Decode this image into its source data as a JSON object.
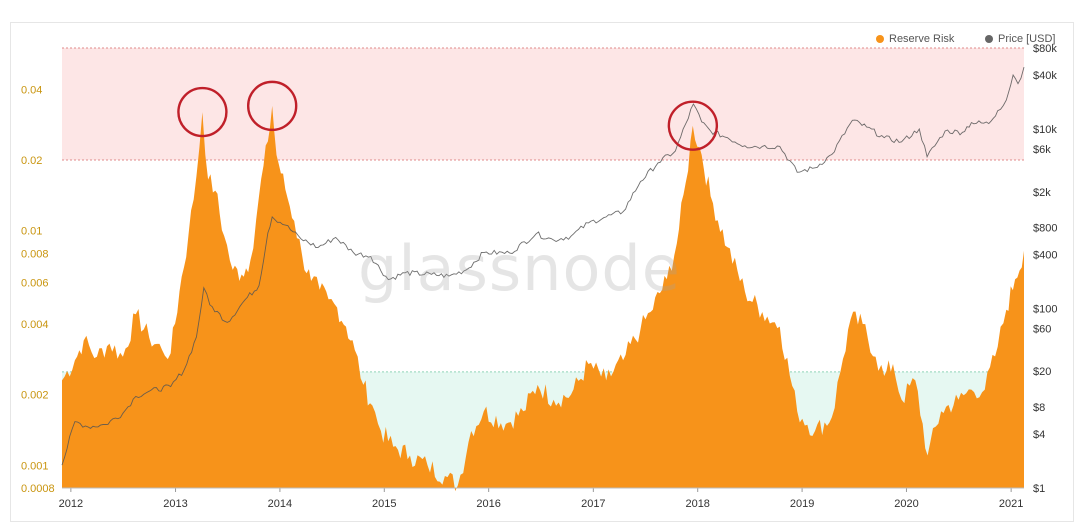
{
  "watermark": "glassnode",
  "colors": {
    "reserve_risk": "#f7931a",
    "price": "#555555",
    "upper_zone": "#fde6e6",
    "lower_zone": "#e6f8f2",
    "circle": "#c0202a"
  },
  "chart_data": {
    "type": "area",
    "legend": [
      {
        "label": "Reserve Risk",
        "color": "#f7931a"
      },
      {
        "label": "Price [USD]",
        "color": "#666666"
      }
    ],
    "x_ticks": [
      "2012",
      "2013",
      "2014",
      "2015",
      "2016",
      "2017",
      "2018",
      "2019",
      "2020",
      "2021"
    ],
    "left_axis": {
      "scale": "log",
      "range": [
        0.0008,
        0.06
      ],
      "ticks": [
        "0.04",
        "0.02",
        "0.01",
        "0.008",
        "0.006",
        "0.004",
        "0.002",
        "0.001",
        "0.0008"
      ]
    },
    "right_axis": {
      "scale": "log",
      "range": [
        1,
        80000
      ],
      "ticks": [
        "$80k",
        "$40k",
        "$10k",
        "$6k",
        "$2k",
        "$800",
        "$400",
        "$100",
        "$60",
        "$20",
        "$8",
        "$4",
        "$1"
      ]
    },
    "bands": {
      "upper": [
        0.02,
        0.06
      ],
      "lower": [
        0.0008,
        0.0025
      ]
    },
    "highlighted_peaks": [
      "2013-04",
      "2013-12",
      "2017-12"
    ],
    "series": [
      {
        "name": "Reserve Risk",
        "axis": "left",
        "points": [
          [
            "2011-12-01",
            0.0023
          ],
          [
            "2012-01-15",
            0.0028
          ],
          [
            "2012-02-15",
            0.0034
          ],
          [
            "2012-04-01",
            0.0029
          ],
          [
            "2012-05-15",
            0.0033
          ],
          [
            "2012-07-01",
            0.0029
          ],
          [
            "2012-08-15",
            0.0044
          ],
          [
            "2012-10-01",
            0.0035
          ],
          [
            "2012-11-15",
            0.0031
          ],
          [
            "2012-12-15",
            0.003
          ],
          [
            "2013-01-15",
            0.0055
          ],
          [
            "2013-02-15",
            0.0095
          ],
          [
            "2013-03-15",
            0.017
          ],
          [
            "2013-04-05",
            0.032
          ],
          [
            "2013-04-25",
            0.0165
          ],
          [
            "2013-05-20",
            0.0148
          ],
          [
            "2013-06-20",
            0.0095
          ],
          [
            "2013-07-20",
            0.0068
          ],
          [
            "2013-08-20",
            0.0065
          ],
          [
            "2013-09-20",
            0.0075
          ],
          [
            "2013-10-20",
            0.014
          ],
          [
            "2013-11-20",
            0.024
          ],
          [
            "2013-12-05",
            0.034
          ],
          [
            "2013-12-20",
            0.021
          ],
          [
            "2014-01-20",
            0.015
          ],
          [
            "2014-02-20",
            0.011
          ],
          [
            "2014-03-20",
            0.0078
          ],
          [
            "2014-04-20",
            0.0061
          ],
          [
            "2014-05-20",
            0.0056
          ],
          [
            "2014-06-20",
            0.0051
          ],
          [
            "2014-07-20",
            0.0047
          ],
          [
            "2014-08-20",
            0.0039
          ],
          [
            "2014-09-20",
            0.0031
          ],
          [
            "2014-10-20",
            0.0022
          ],
          [
            "2014-11-20",
            0.0018
          ],
          [
            "2014-12-20",
            0.0014
          ],
          [
            "2015-02-01",
            0.0012
          ],
          [
            "2015-04-01",
            0.0011
          ],
          [
            "2015-06-01",
            0.001
          ],
          [
            "2015-08-01",
            0.0009
          ],
          [
            "2015-09-15",
            0.00082
          ],
          [
            "2015-11-01",
            0.0014
          ],
          [
            "2015-12-15",
            0.0017
          ],
          [
            "2016-03-01",
            0.0015
          ],
          [
            "2016-05-01",
            0.0017
          ],
          [
            "2016-06-20",
            0.0022
          ],
          [
            "2016-08-15",
            0.0019
          ],
          [
            "2016-10-15",
            0.002
          ],
          [
            "2016-12-15",
            0.0027
          ],
          [
            "2017-02-15",
            0.0023
          ],
          [
            "2017-04-15",
            0.0028
          ],
          [
            "2017-06-15",
            0.0038
          ],
          [
            "2017-07-20",
            0.0045
          ],
          [
            "2017-09-15",
            0.0062
          ],
          [
            "2017-10-20",
            0.0088
          ],
          [
            "2017-11-20",
            0.016
          ],
          [
            "2017-12-15",
            0.028
          ],
          [
            "2018-01-15",
            0.021
          ],
          [
            "2018-02-15",
            0.014
          ],
          [
            "2018-04-15",
            0.0085
          ],
          [
            "2018-06-15",
            0.0055
          ],
          [
            "2018-08-15",
            0.0045
          ],
          [
            "2018-10-15",
            0.0039
          ],
          [
            "2018-12-15",
            0.0017
          ],
          [
            "2019-02-15",
            0.0014
          ],
          [
            "2019-04-15",
            0.0016
          ],
          [
            "2019-05-15",
            0.0025
          ],
          [
            "2019-06-20",
            0.0042
          ],
          [
            "2019-08-01",
            0.004
          ],
          [
            "2019-09-15",
            0.0029
          ],
          [
            "2019-10-15",
            0.0024
          ],
          [
            "2019-11-15",
            0.0027
          ],
          [
            "2019-12-15",
            0.0019
          ],
          [
            "2020-02-01",
            0.0023
          ],
          [
            "2020-03-15",
            0.0011
          ],
          [
            "2020-05-01",
            0.0017
          ],
          [
            "2020-07-01",
            0.0019
          ],
          [
            "2020-08-15",
            0.0021
          ],
          [
            "2020-10-01",
            0.0021
          ],
          [
            "2020-11-15",
            0.0032
          ],
          [
            "2020-12-15",
            0.0046
          ],
          [
            "2021-01-15",
            0.0062
          ],
          [
            "2021-02-15",
            0.0082
          ]
        ]
      },
      {
        "name": "Price [USD]",
        "axis": "right",
        "points": [
          [
            "2011-12-01",
            1.8
          ],
          [
            "2012-01-15",
            5.5
          ],
          [
            "2012-03-01",
            4.8
          ],
          [
            "2012-05-01",
            5.1
          ],
          [
            "2012-07-01",
            6.8
          ],
          [
            "2012-08-15",
            10.5
          ],
          [
            "2012-10-01",
            12
          ],
          [
            "2012-12-15",
            13.5
          ],
          [
            "2013-02-01",
            21
          ],
          [
            "2013-03-15",
            48
          ],
          [
            "2013-04-10",
            170
          ],
          [
            "2013-05-01",
            110
          ],
          [
            "2013-07-01",
            70
          ],
          [
            "2013-09-01",
            125
          ],
          [
            "2013-10-20",
            180
          ],
          [
            "2013-11-20",
            700
          ],
          [
            "2013-12-05",
            1050
          ],
          [
            "2014-01-20",
            850
          ],
          [
            "2014-03-15",
            600
          ],
          [
            "2014-05-15",
            480
          ],
          [
            "2014-07-15",
            620
          ],
          [
            "2014-09-15",
            420
          ],
          [
            "2014-11-15",
            380
          ],
          [
            "2015-01-15",
            210
          ],
          [
            "2015-03-15",
            250
          ],
          [
            "2015-06-15",
            240
          ],
          [
            "2015-08-15",
            230
          ],
          [
            "2015-10-15",
            270
          ],
          [
            "2015-12-15",
            420
          ],
          [
            "2016-03-15",
            415
          ],
          [
            "2016-06-15",
            680
          ],
          [
            "2016-08-15",
            580
          ],
          [
            "2016-10-15",
            640
          ],
          [
            "2016-12-15",
            900
          ],
          [
            "2017-02-15",
            1050
          ],
          [
            "2017-04-15",
            1200
          ],
          [
            "2017-06-15",
            2600
          ],
          [
            "2017-08-15",
            4200
          ],
          [
            "2017-10-15",
            5700
          ],
          [
            "2017-12-17",
            19000
          ],
          [
            "2018-01-15",
            12000
          ],
          [
            "2018-02-15",
            9500
          ],
          [
            "2018-04-15",
            8000
          ],
          [
            "2018-06-15",
            6500
          ],
          [
            "2018-08-15",
            6400
          ],
          [
            "2018-10-15",
            6400
          ],
          [
            "2018-12-15",
            3300
          ],
          [
            "2019-02-15",
            3700
          ],
          [
            "2019-04-15",
            5200
          ],
          [
            "2019-06-26",
            12500
          ],
          [
            "2019-08-15",
            10500
          ],
          [
            "2019-10-15",
            8000
          ],
          [
            "2019-12-15",
            7200
          ],
          [
            "2020-02-15",
            10000
          ],
          [
            "2020-03-13",
            4900
          ],
          [
            "2020-05-15",
            9500
          ],
          [
            "2020-07-15",
            9200
          ],
          [
            "2020-08-15",
            11800
          ],
          [
            "2020-10-15",
            11500
          ],
          [
            "2020-11-15",
            16000
          ],
          [
            "2020-12-15",
            21000
          ],
          [
            "2021-01-08",
            40000
          ],
          [
            "2021-01-25",
            32000
          ],
          [
            "2021-02-15",
            49000
          ]
        ]
      }
    ]
  }
}
